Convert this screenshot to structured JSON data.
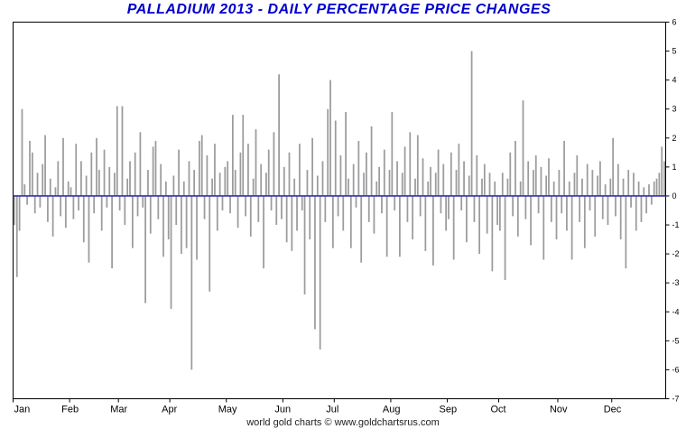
{
  "footer": {
    "text": "world gold charts © www.goldchartsrus.com"
  },
  "colors": {
    "bar": "#9c9c9e",
    "zero_line": "#3333aa",
    "border": "#000000",
    "title": "#0000cc",
    "axis_text": "#000000"
  },
  "chart_data": {
    "type": "bar",
    "title": "PALLADIUM 2013 - DAILY PERCENTAGE PRICE CHANGES",
    "xlabel": "",
    "ylabel": "",
    "ylim": [
      -7,
      6
    ],
    "ytick_labels": [
      6,
      5,
      4,
      3,
      2,
      1,
      0,
      -1,
      -2,
      -3,
      -4,
      -5,
      -6,
      -7
    ],
    "legend": "none",
    "grid": "off",
    "categories": [
      "Jan",
      "Feb",
      "Mar",
      "Apr",
      "May",
      "Jun",
      "Jul",
      "Aug",
      "Sep",
      "Oct",
      "Nov",
      "Dec"
    ],
    "month_start_indices": [
      0,
      22,
      41,
      61,
      83,
      105,
      125,
      147,
      169,
      189,
      212,
      233
    ],
    "values": [
      -1.0,
      -2.8,
      -1.2,
      3.0,
      0.4,
      -0.3,
      1.9,
      1.5,
      -0.6,
      0.8,
      -0.4,
      1.1,
      2.1,
      -0.9,
      0.6,
      -1.4,
      0.3,
      1.2,
      -0.7,
      2.0,
      -1.1,
      0.5,
      0.3,
      -0.8,
      1.8,
      -0.5,
      1.2,
      -1.6,
      0.7,
      -2.3,
      1.5,
      -0.6,
      2.0,
      0.9,
      -1.2,
      1.6,
      -0.4,
      1.0,
      -2.5,
      0.8,
      3.1,
      -0.5,
      3.1,
      -1.0,
      0.6,
      1.2,
      -1.8,
      1.5,
      -0.7,
      2.2,
      -0.4,
      -3.7,
      0.9,
      -1.3,
      1.7,
      1.9,
      -0.8,
      1.1,
      -2.1,
      0.5,
      -1.5,
      -3.9,
      0.7,
      -1.0,
      1.6,
      -2.0,
      0.5,
      -1.8,
      1.2,
      -6.0,
      0.9,
      -2.2,
      1.9,
      2.1,
      -0.8,
      1.4,
      -3.3,
      0.6,
      1.8,
      -1.2,
      0.8,
      -0.5,
      1.0,
      1.2,
      -0.6,
      2.8,
      0.9,
      -1.1,
      1.5,
      2.8,
      -0.7,
      1.8,
      -1.4,
      0.6,
      2.3,
      -0.9,
      1.1,
      -2.5,
      0.8,
      1.6,
      -0.5,
      2.2,
      -1.0,
      4.2,
      -0.8,
      1.0,
      -1.6,
      1.5,
      -1.9,
      0.6,
      -1.2,
      1.8,
      -0.5,
      -3.4,
      0.9,
      -1.5,
      2.0,
      -4.6,
      0.7,
      -5.3,
      1.2,
      -0.9,
      3.0,
      4.0,
      -1.8,
      2.6,
      -0.7,
      1.4,
      -1.2,
      2.9,
      0.6,
      -1.8,
      1.1,
      -0.4,
      1.9,
      -2.3,
      0.8,
      1.5,
      -0.9,
      2.4,
      -1.3,
      0.5,
      1.0,
      -0.6,
      1.6,
      -2.1,
      0.9,
      2.9,
      -0.5,
      1.2,
      -2.1,
      0.8,
      1.7,
      -0.9,
      2.2,
      -1.5,
      0.6,
      2.1,
      -0.7,
      1.3,
      -1.9,
      0.5,
      1.0,
      -2.4,
      0.8,
      1.6,
      -0.6,
      1.1,
      -1.2,
      -0.8,
      1.5,
      -2.2,
      0.9,
      1.8,
      -0.5,
      1.2,
      -1.6,
      0.7,
      5.0,
      -0.9,
      1.4,
      -2.0,
      0.6,
      1.1,
      -1.3,
      0.8,
      -2.6,
      0.5,
      -1.0,
      -1.2,
      0.8,
      -2.9,
      0.6,
      1.5,
      -0.7,
      1.9,
      -1.4,
      0.5,
      3.3,
      -0.8,
      1.2,
      -1.7,
      0.9,
      1.4,
      -0.6,
      1.0,
      -2.2,
      0.7,
      1.3,
      -0.9,
      0.5,
      -1.5,
      0.9,
      -0.6,
      1.9,
      -1.2,
      0.5,
      -2.2,
      0.8,
      1.4,
      -0.9,
      0.6,
      -1.8,
      1.1,
      -0.5,
      0.9,
      -1.4,
      0.7,
      1.2,
      -0.8,
      0.4,
      -1.0,
      0.6,
      2.0,
      -0.7,
      1.1,
      -1.5,
      0.6,
      -2.5,
      0.9,
      -0.4,
      0.8,
      -1.2,
      0.5,
      -0.9,
      0.3,
      -0.6,
      0.4,
      -0.3,
      0.5,
      0.6,
      0.8,
      1.7,
      1.2
    ]
  }
}
